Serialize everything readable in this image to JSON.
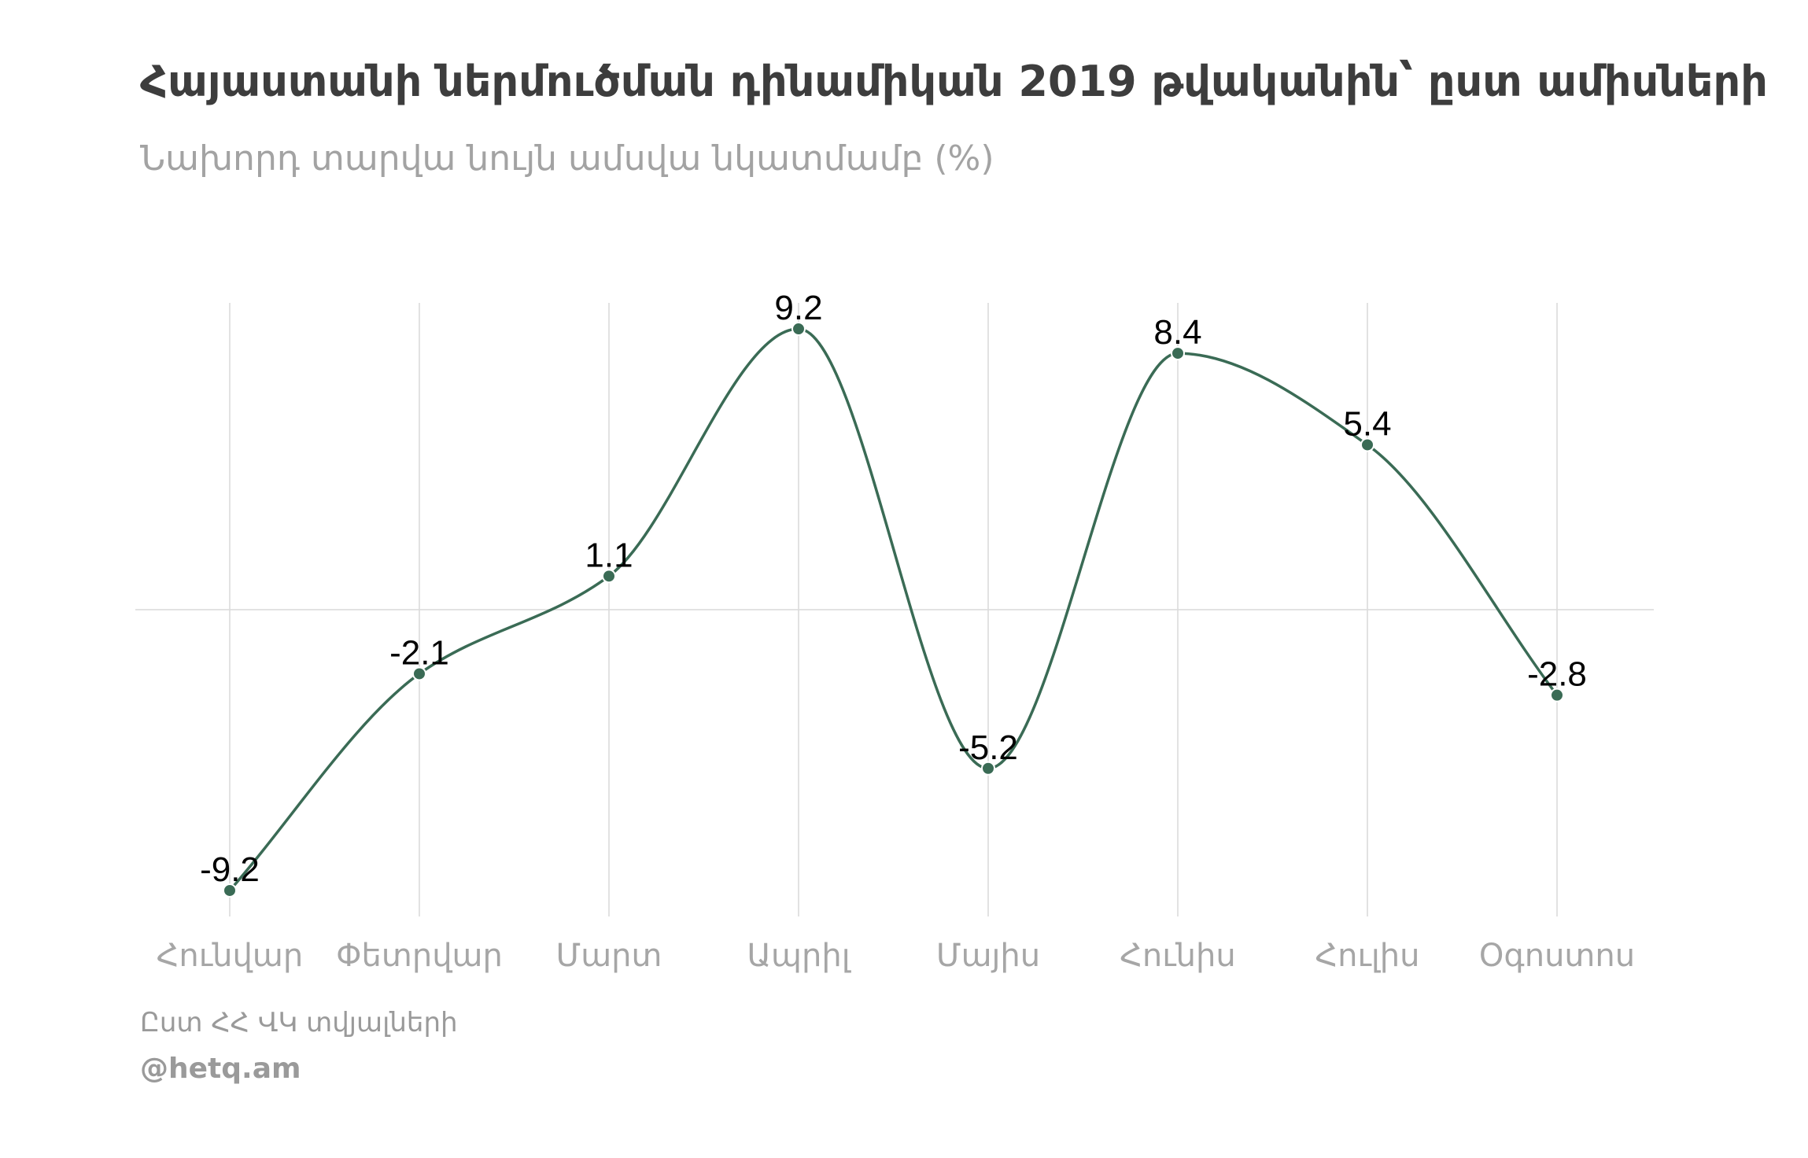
{
  "title": "Հայաստանի ներմուծման դինամիկան 2019 թվականին՝  ըստ ամիսների",
  "subtitle": "Նախորդ տարվա նույն ամսվա նկատմամբ (%)",
  "footer": {
    "source": "Ըստ ՀՀ ՎԿ տվյալների",
    "credit": "@hetq.am"
  },
  "colors": {
    "line": "#3a6b55",
    "grid": "#d9d9d9",
    "tick_text": "#a6a6a6",
    "title": "#3d3d3d",
    "subtitle": "#a3a3a3"
  },
  "chart_data": {
    "type": "line",
    "categories": [
      "Հունվար",
      "Փետրվար",
      "Մարտ",
      "Ապրիլ",
      "Մայիս",
      "Հունիս",
      "Հուլիս",
      "Օգոստոս"
    ],
    "values": [
      -9.2,
      -2.1,
      1.1,
      9.2,
      -5.2,
      8.4,
      5.4,
      -2.8
    ],
    "data_labels": [
      "-9.2",
      "-2.1",
      "1.1",
      "9.2",
      "-5.2",
      "8.4",
      "5.4",
      "-2.8"
    ],
    "ylim": [
      -10,
      10
    ],
    "grid": "vertical gridlines at each month, horizontal baseline at zero",
    "legend": "none"
  }
}
